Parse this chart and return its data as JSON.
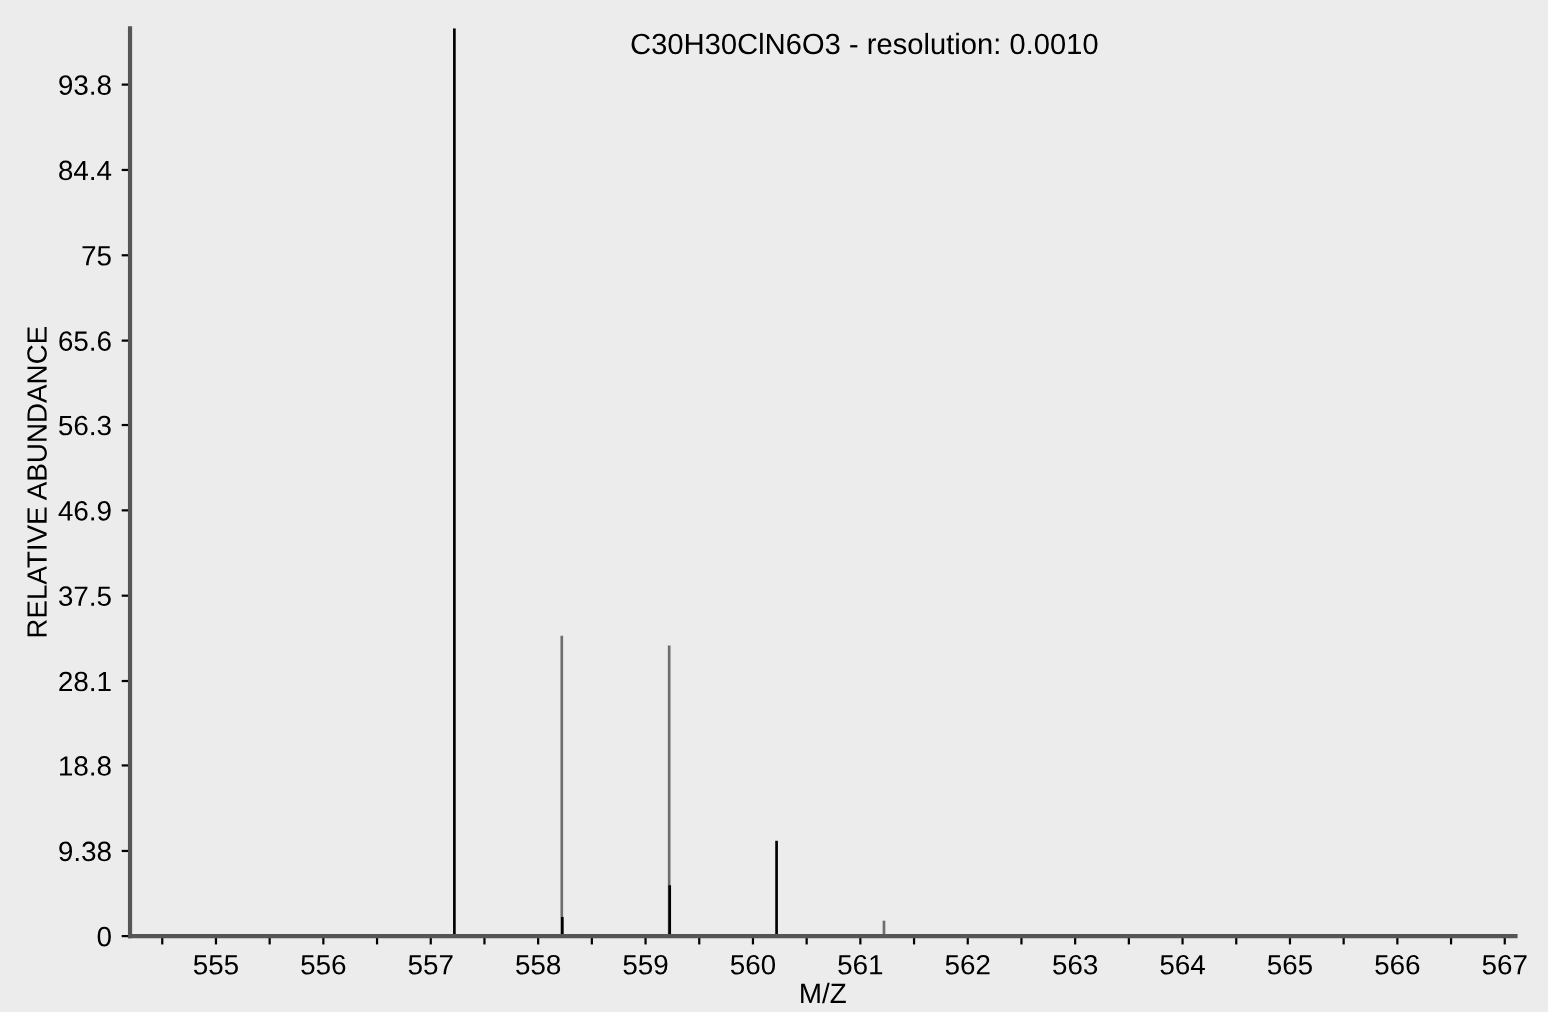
{
  "chart_data": {
    "type": "bar",
    "title": "C30H30ClN6O3 - resolution: 0.0010",
    "xlabel": "M/Z",
    "ylabel": "RELATIVE ABUNDANCE",
    "x": [
      557.22,
      558.22,
      558.225,
      559.22,
      559.225,
      560.22,
      561.22
    ],
    "values": [
      100,
      33.1,
      2.1,
      32.0,
      5.6,
      10.5,
      1.7
    ],
    "colors": [
      "#000000",
      "#6e6e6e",
      "#000000",
      "#6e6e6e",
      "#000000",
      "#000000",
      "#6e6e6e"
    ],
    "xlim": [
      554.2,
      567.1
    ],
    "ylim": [
      0,
      100
    ],
    "xticks": [
      {
        "value": 554.5,
        "label": null
      },
      555,
      {
        "value": 555.5,
        "label": null
      },
      556,
      {
        "value": 556.5,
        "label": null
      },
      557,
      {
        "value": 557.5,
        "label": null
      },
      558,
      {
        "value": 558.5,
        "label": null
      },
      559,
      {
        "value": 559.5,
        "label": null
      },
      560,
      {
        "value": 560.5,
        "label": null
      },
      561,
      {
        "value": 561.5,
        "label": null
      },
      562,
      {
        "value": 562.5,
        "label": null
      },
      563,
      {
        "value": 563.5,
        "label": null
      },
      564,
      {
        "value": 564.5,
        "label": null
      },
      565,
      {
        "value": 565.5,
        "label": null
      },
      566,
      {
        "value": 566.5,
        "label": null
      },
      567
    ],
    "yticks": [
      0,
      9.38,
      18.8,
      28.1,
      37.5,
      46.9,
      56.3,
      65.6,
      75,
      84.4,
      93.8
    ],
    "grid": false,
    "legend": false
  }
}
